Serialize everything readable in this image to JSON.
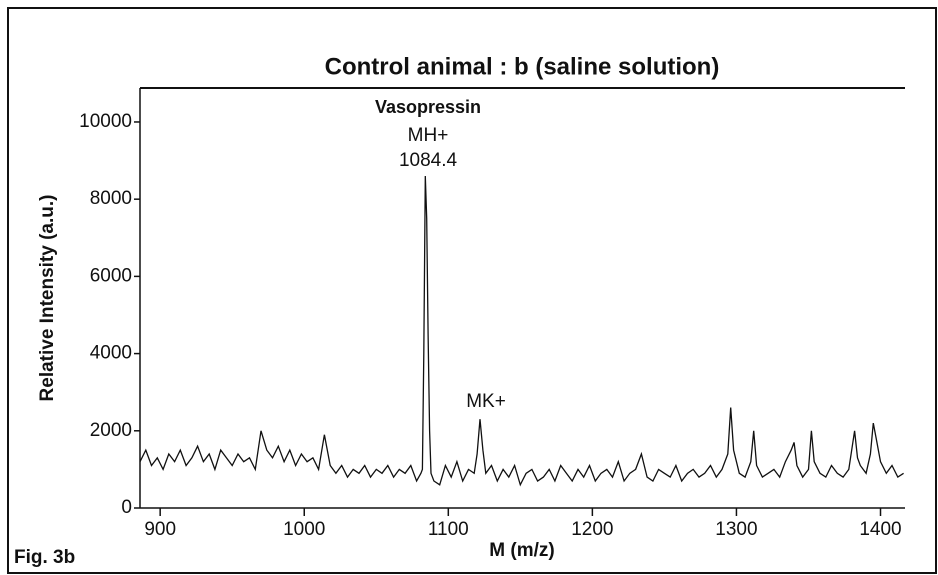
{
  "chart_data": {
    "type": "line",
    "title": "Control animal : b (saline solution)",
    "x_label": "M (m/z)",
    "y_label": "Relative Intensity (a.u.)",
    "figure_label": "Fig. 3b",
    "annotations": [
      "Vasopressin",
      "MH+",
      "1084.4",
      "MK+"
    ],
    "xlim": [
      886,
      1417
    ],
    "ylim": [
      0,
      10880
    ],
    "xticks": [
      900,
      1000,
      1100,
      1200,
      1300,
      1400
    ],
    "yticks": [
      0,
      2000,
      4000,
      6000,
      8000,
      10000
    ],
    "series": [
      {
        "color": "#111111",
        "x": [
          886,
          890,
          894,
          898,
          902,
          906,
          910,
          914,
          918,
          922,
          926,
          930,
          934,
          938,
          942,
          946,
          950,
          954,
          958,
          962,
          966,
          970,
          974,
          978,
          982,
          986,
          990,
          994,
          998,
          1002,
          1006,
          1010,
          1014,
          1018,
          1022,
          1026,
          1030,
          1034,
          1038,
          1042,
          1046,
          1050,
          1054,
          1058,
          1062,
          1066,
          1070,
          1074,
          1078,
          1081,
          1082,
          1083,
          1084,
          1085,
          1086,
          1087,
          1088,
          1090,
          1094,
          1098,
          1102,
          1106,
          1110,
          1114,
          1118,
          1120,
          1122,
          1124,
          1126,
          1130,
          1134,
          1138,
          1142,
          1146,
          1150,
          1154,
          1158,
          1162,
          1166,
          1170,
          1174,
          1178,
          1182,
          1186,
          1190,
          1194,
          1198,
          1202,
          1206,
          1210,
          1214,
          1218,
          1222,
          1226,
          1230,
          1234,
          1238,
          1242,
          1246,
          1250,
          1254,
          1258,
          1262,
          1266,
          1270,
          1274,
          1278,
          1282,
          1286,
          1290,
          1294,
          1296,
          1298,
          1302,
          1306,
          1310,
          1312,
          1314,
          1318,
          1322,
          1326,
          1330,
          1334,
          1338,
          1340,
          1342,
          1346,
          1350,
          1352,
          1354,
          1358,
          1362,
          1366,
          1370,
          1374,
          1378,
          1382,
          1384,
          1386,
          1390,
          1393,
          1395,
          1397,
          1400,
          1404,
          1408,
          1412,
          1416
        ],
        "values": [
          1200,
          1500,
          1100,
          1300,
          1000,
          1400,
          1200,
          1500,
          1100,
          1300,
          1600,
          1200,
          1400,
          1000,
          1500,
          1300,
          1100,
          1400,
          1200,
          1300,
          1000,
          2000,
          1500,
          1300,
          1600,
          1200,
          1500,
          1100,
          1400,
          1200,
          1300,
          1000,
          1900,
          1100,
          900,
          1100,
          800,
          1000,
          900,
          1100,
          800,
          1000,
          900,
          1100,
          800,
          1000,
          900,
          1100,
          700,
          900,
          1000,
          4000,
          8600,
          7500,
          4500,
          2000,
          900,
          700,
          600,
          1100,
          800,
          1200,
          700,
          1000,
          900,
          1400,
          2300,
          1500,
          900,
          1100,
          700,
          1000,
          800,
          1100,
          600,
          900,
          1000,
          700,
          800,
          1000,
          700,
          1100,
          900,
          700,
          1000,
          800,
          1100,
          700,
          900,
          1000,
          800,
          1200,
          700,
          900,
          1000,
          1400,
          800,
          700,
          1000,
          900,
          800,
          1100,
          700,
          900,
          1000,
          800,
          900,
          1100,
          800,
          1000,
          1400,
          2600,
          1500,
          900,
          800,
          1200,
          2000,
          1100,
          800,
          900,
          1000,
          800,
          1200,
          1500,
          1700,
          1100,
          800,
          1000,
          2000,
          1200,
          900,
          800,
          1100,
          900,
          800,
          1000,
          2000,
          1300,
          1100,
          900,
          1400,
          2200,
          1800,
          1200,
          900,
          1100,
          800,
          900
        ]
      }
    ]
  }
}
